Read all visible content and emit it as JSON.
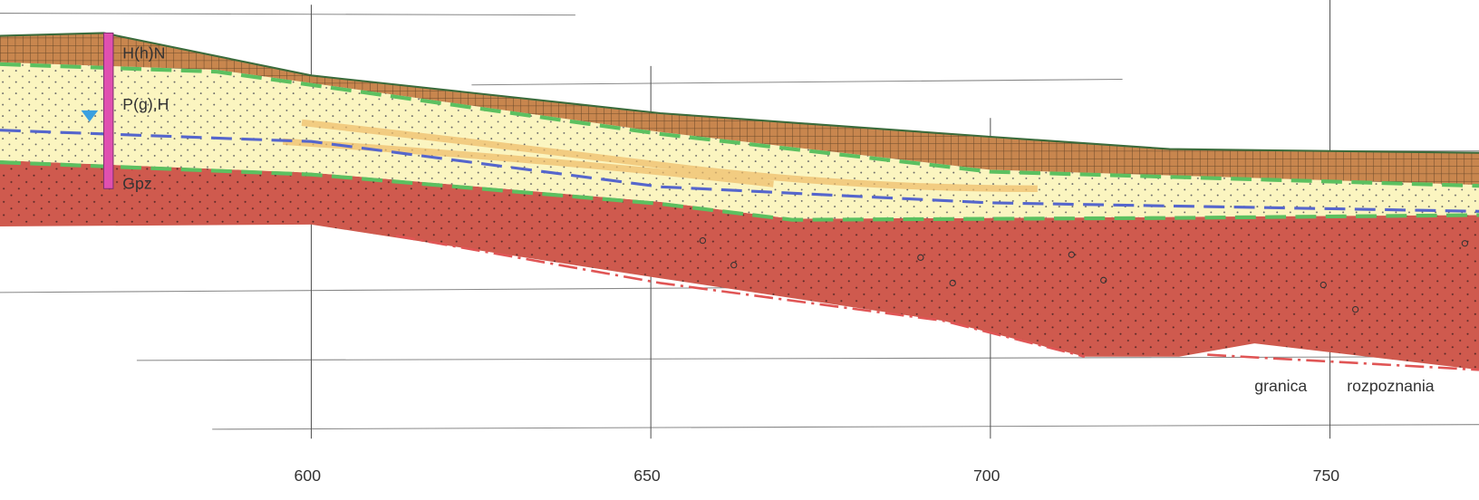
{
  "layers": [
    {
      "label": "H(h)N"
    },
    {
      "label": "P(g),H"
    },
    {
      "label": "Gpz"
    }
  ],
  "boundary_label": [
    "granica",
    "rozpoznania"
  ],
  "distance_axis": {
    "ticks": [
      600,
      650,
      700,
      750
    ]
  }
}
